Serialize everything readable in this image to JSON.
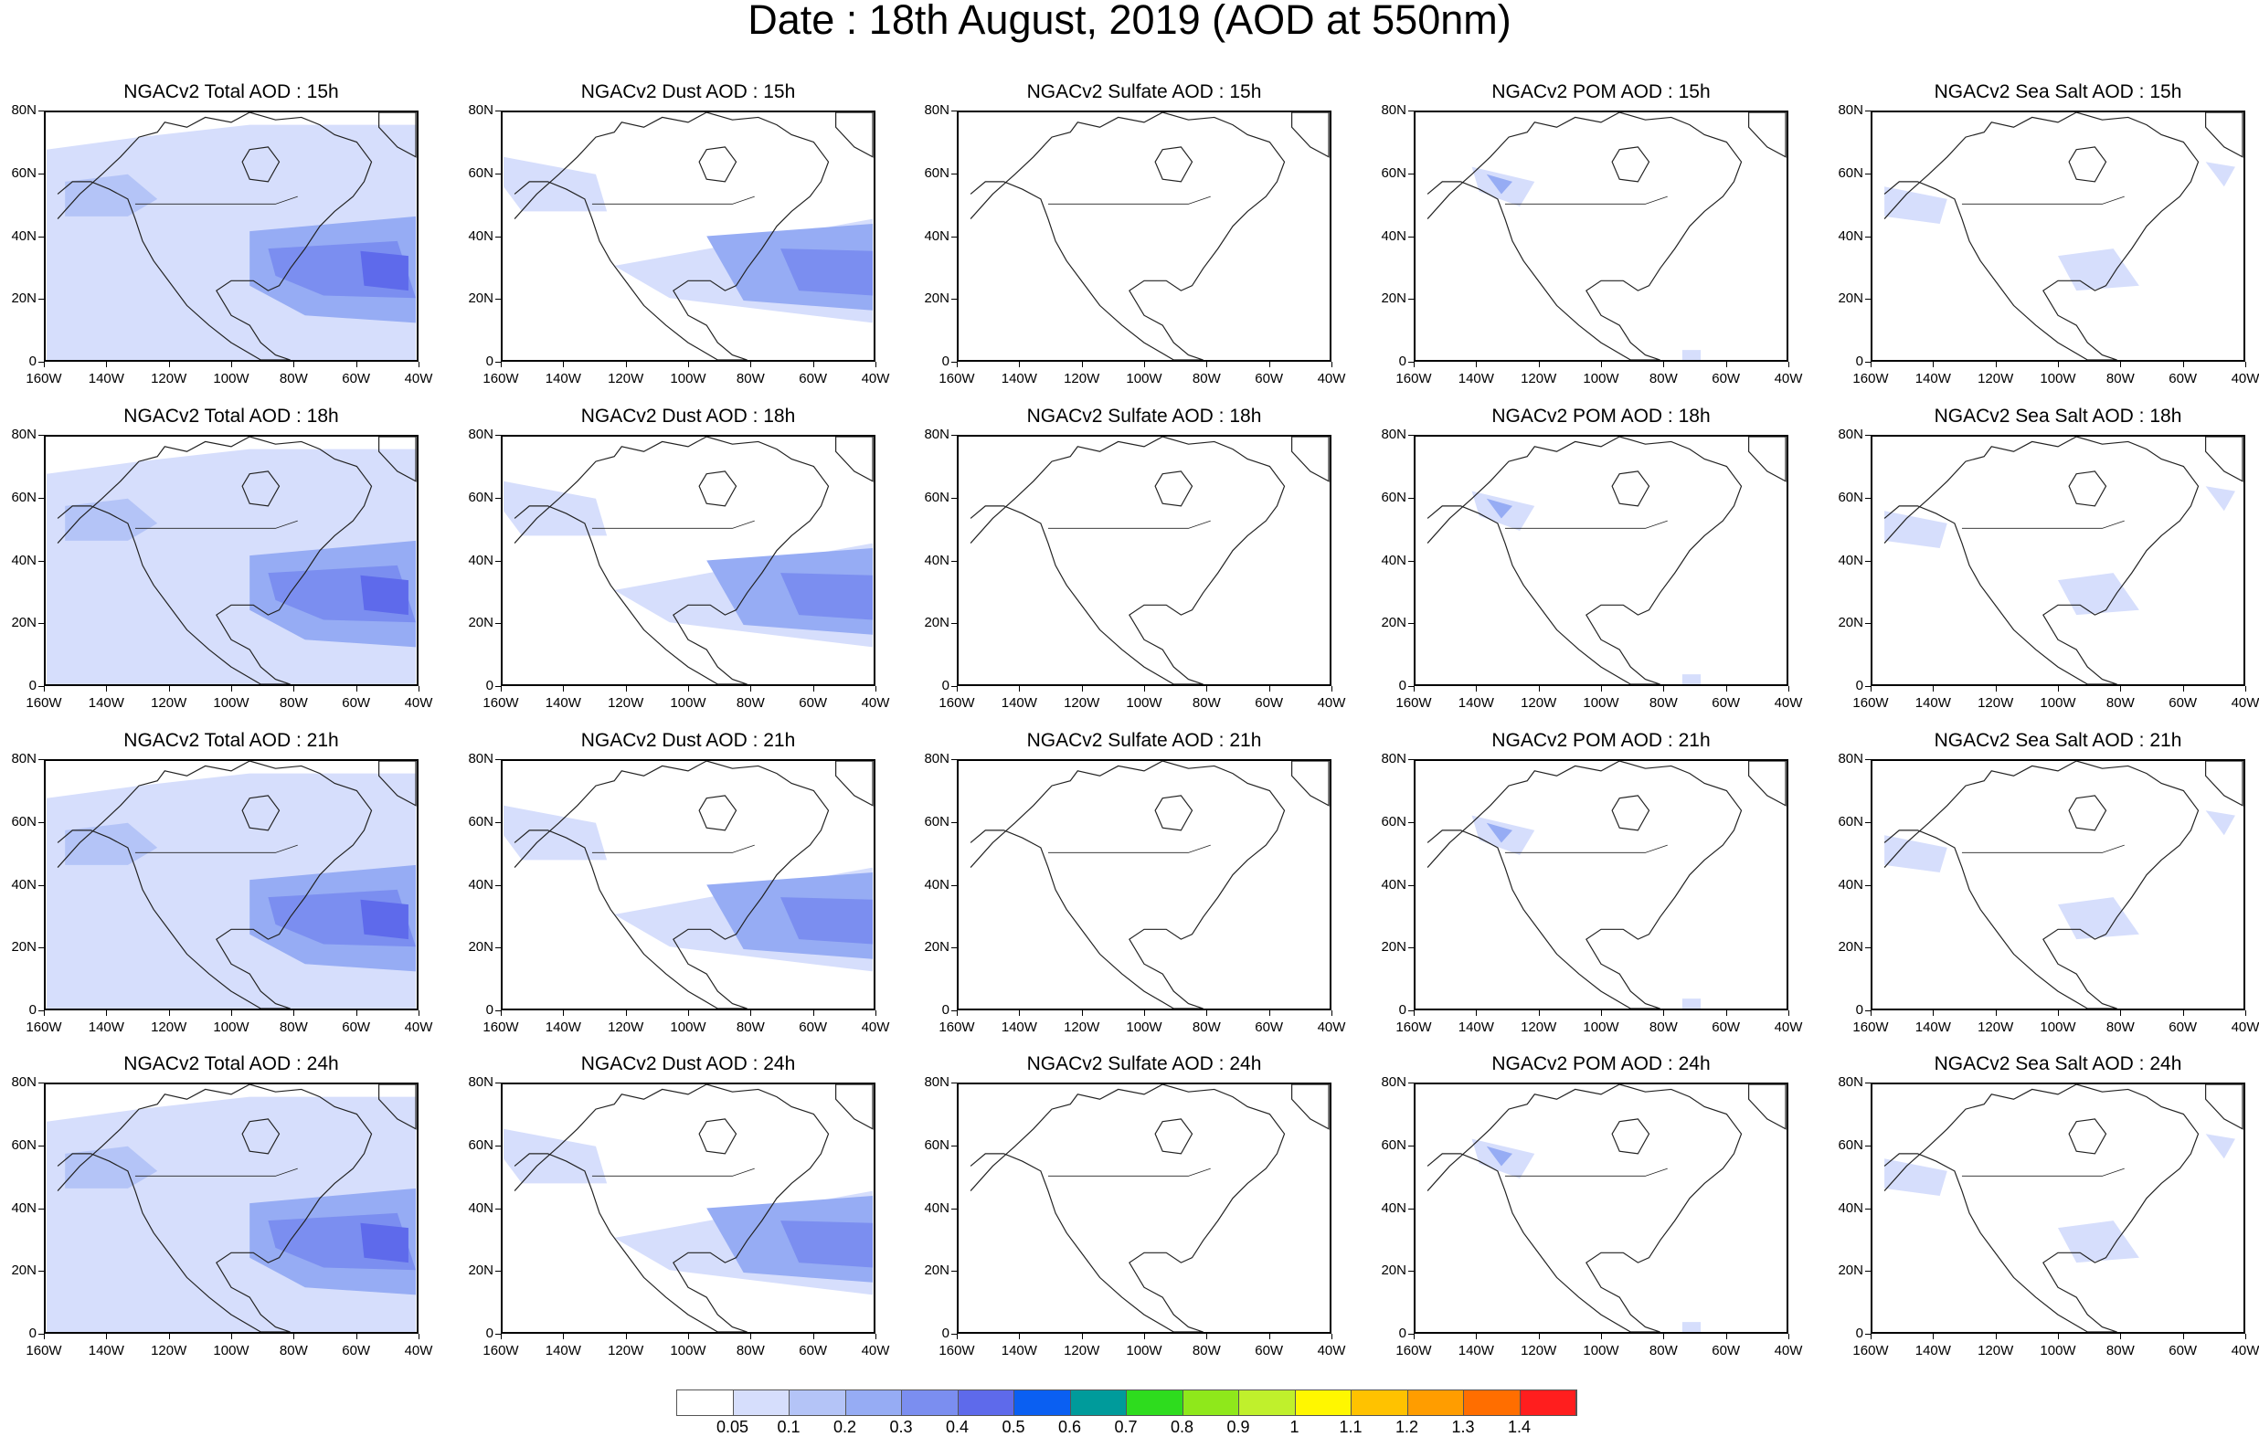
{
  "title": "Date : 18th August, 2019 (AOD at 550nm)",
  "panels": [
    [
      "NGACv2 Total AOD : 15h",
      "NGACv2 Dust AOD : 15h",
      "NGACv2 Sulfate AOD : 15h",
      "NGACv2 POM AOD : 15h",
      "NGACv2 Sea Salt AOD : 15h"
    ],
    [
      "NGACv2 Total AOD : 18h",
      "NGACv2 Dust AOD : 18h",
      "NGACv2 Sulfate AOD : 18h",
      "NGACv2 POM AOD : 18h",
      "NGACv2 Sea Salt AOD : 18h"
    ],
    [
      "NGACv2 Total AOD : 21h",
      "NGACv2 Dust AOD : 21h",
      "NGACv2 Sulfate AOD : 21h",
      "NGACv2 POM AOD : 21h",
      "NGACv2 Sea Salt AOD : 21h"
    ],
    [
      "NGACv2 Total AOD : 24h",
      "NGACv2 Dust AOD : 24h",
      "NGACv2 Sulfate AOD : 24h",
      "NGACv2 POM AOD : 24h",
      "NGACv2 Sea Salt  AOD : 24h"
    ]
  ],
  "lat_labels": [
    "80N",
    "60N",
    "40N",
    "20N",
    "0"
  ],
  "lon_labels": [
    "160W",
    "140W",
    "120W",
    "100W",
    "80W",
    "60W",
    "40W"
  ],
  "colorbar": {
    "colors": [
      "#ffffff",
      "#d6defc",
      "#b4c4f7",
      "#96acf4",
      "#7b8ef0",
      "#5e6aeb",
      "#0a5ff2",
      "#009b9b",
      "#2edc1e",
      "#8fe81b",
      "#c0f02c",
      "#fff700",
      "#ffc200",
      "#ff9d00",
      "#ff6e00",
      "#ff1e1e"
    ],
    "labels": [
      "0.05",
      "0.1",
      "0.2",
      "0.3",
      "0.4",
      "0.5",
      "0.6",
      "0.7",
      "0.8",
      "0.9",
      "1",
      "1.1",
      "1.2",
      "1.3",
      "1.4"
    ]
  }
}
